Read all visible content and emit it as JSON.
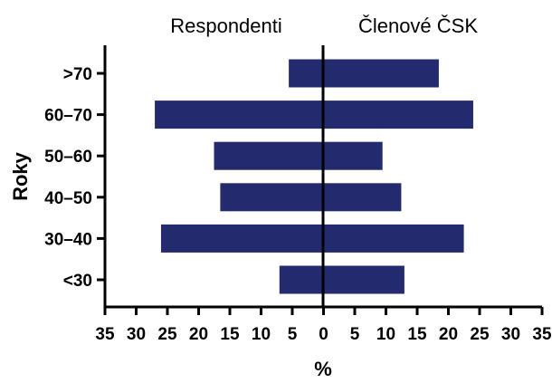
{
  "chart_data": {
    "type": "bar",
    "orientation": "horizontal",
    "layout": "population-pyramid",
    "xlabel": "%",
    "ylabel": "Roky",
    "xlim": [
      -35,
      35
    ],
    "x_ticks": [
      "35",
      "30",
      "25",
      "20",
      "15",
      "10",
      "5",
      "0",
      "5",
      "10",
      "15",
      "20",
      "25",
      "30",
      "35"
    ],
    "categories": [
      ">70",
      "60–70",
      "50–60",
      "40–50",
      "30–40",
      "<30"
    ],
    "series": [
      {
        "name": "Respondenti",
        "side": "left",
        "values": [
          5.5,
          27,
          17.5,
          16.5,
          26,
          7
        ]
      },
      {
        "name": "Členové ČSK",
        "side": "right",
        "values": [
          18.5,
          24,
          9.5,
          12.5,
          22.5,
          13
        ]
      }
    ],
    "bar_color": "#232a6e",
    "grid": false,
    "legend": "top (series names above each side)"
  }
}
